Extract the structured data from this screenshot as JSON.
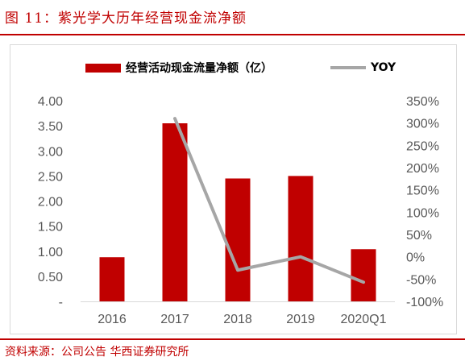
{
  "figure_title": "图 11：紫光学大历年经营现金流净额",
  "source": "资料来源：公司公告 华西证券研究所",
  "colors": {
    "accent": "#c00000",
    "bar": "#c00000",
    "line": "#a6a6a6"
  },
  "chart_data": {
    "type": "bar",
    "categories": [
      "2016",
      "2017",
      "2018",
      "2019",
      "2020Q1"
    ],
    "series": [
      {
        "name": "经营活动现金流量净额（亿）",
        "type": "bar",
        "axis": "left",
        "values": [
          0.88,
          3.55,
          2.45,
          2.5,
          1.04
        ]
      },
      {
        "name": "YOY",
        "type": "line",
        "axis": "right",
        "values": [
          null,
          310,
          -30,
          0,
          -57
        ]
      }
    ],
    "y_left": {
      "ylim": [
        0,
        4.0
      ],
      "ticks": [
        "-",
        "0.50",
        "1.00",
        "1.50",
        "2.00",
        "2.50",
        "3.00",
        "3.50",
        "4.00"
      ]
    },
    "y_right": {
      "ylim": [
        -100,
        350
      ],
      "ticks": [
        "-100%",
        "-50%",
        "0%",
        "50%",
        "100%",
        "150%",
        "200%",
        "250%",
        "300%",
        "350%"
      ]
    },
    "legend": "top-center",
    "grid": false
  }
}
